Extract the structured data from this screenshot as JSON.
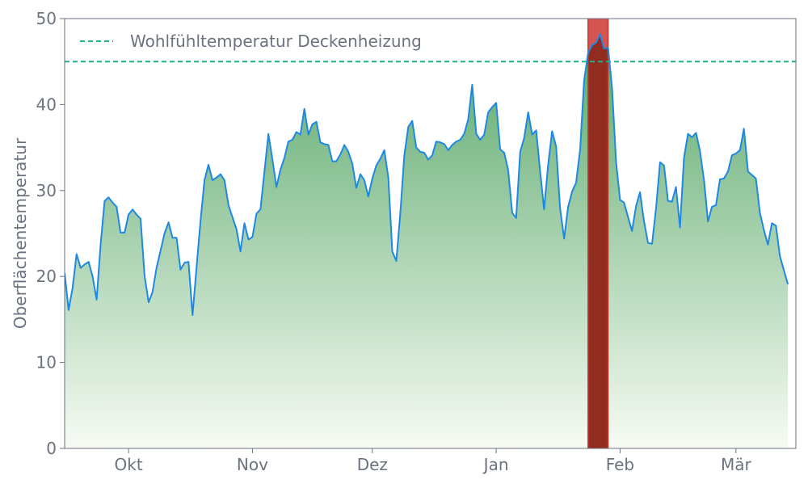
{
  "chart_data": {
    "type": "area",
    "title": "",
    "xlabel": "",
    "ylabel": "Oberflächentemperatur",
    "ylim": [
      0,
      50
    ],
    "y_ticks": [
      0,
      10,
      20,
      30,
      40,
      50
    ],
    "x_range": [
      "2023-09-15",
      "2024-03-16"
    ],
    "x_ticks": [
      {
        "date": "2023-10-01",
        "label": "Okt"
      },
      {
        "date": "2023-11-01",
        "label": "Nov"
      },
      {
        "date": "2023-12-01",
        "label": "Dez"
      },
      {
        "date": "2024-01-01",
        "label": "Jan"
      },
      {
        "date": "2024-02-01",
        "label": "Feb"
      },
      {
        "date": "2024-03-01",
        "label": "Mär"
      }
    ],
    "grid": false,
    "legend": {
      "placement": "top-left"
    },
    "series": [
      {
        "color": "#1e88e5",
        "fill_gradient": [
          "#5aa86a",
          "#f7fbf4"
        ],
        "points": [
          [
            "2023-09-15",
            20.4
          ],
          [
            "2023-09-16",
            16.1
          ],
          [
            "2023-09-17",
            18.7
          ],
          [
            "2023-09-18",
            22.6
          ],
          [
            "2023-09-19",
            21.0
          ],
          [
            "2023-09-20",
            21.4
          ],
          [
            "2023-09-21",
            21.7
          ],
          [
            "2023-09-22",
            20.0
          ],
          [
            "2023-09-23",
            17.3
          ],
          [
            "2023-09-24",
            23.7
          ],
          [
            "2023-09-25",
            28.8
          ],
          [
            "2023-09-26",
            29.2
          ],
          [
            "2023-09-27",
            28.6
          ],
          [
            "2023-09-28",
            28.1
          ],
          [
            "2023-09-29",
            25.1
          ],
          [
            "2023-09-30",
            25.1
          ],
          [
            "2023-10-01",
            27.2
          ],
          [
            "2023-10-02",
            27.8
          ],
          [
            "2023-10-03",
            27.2
          ],
          [
            "2023-10-04",
            26.7
          ],
          [
            "2023-10-05",
            20.1
          ],
          [
            "2023-10-06",
            17.0
          ],
          [
            "2023-10-07",
            18.2
          ],
          [
            "2023-10-08",
            21.0
          ],
          [
            "2023-10-09",
            23.0
          ],
          [
            "2023-10-10",
            25.0
          ],
          [
            "2023-10-11",
            26.3
          ],
          [
            "2023-10-12",
            24.5
          ],
          [
            "2023-10-13",
            24.5
          ],
          [
            "2023-10-14",
            20.8
          ],
          [
            "2023-10-15",
            21.6
          ],
          [
            "2023-10-16",
            21.7
          ],
          [
            "2023-10-17",
            15.5
          ],
          [
            "2023-10-18",
            21.0
          ],
          [
            "2023-10-19",
            26.4
          ],
          [
            "2023-10-20",
            31.2
          ],
          [
            "2023-10-21",
            33.0
          ],
          [
            "2023-10-22",
            31.2
          ],
          [
            "2023-10-23",
            31.5
          ],
          [
            "2023-10-24",
            31.9
          ],
          [
            "2023-10-25",
            31.2
          ],
          [
            "2023-10-26",
            28.3
          ],
          [
            "2023-10-27",
            26.9
          ],
          [
            "2023-10-28",
            25.5
          ],
          [
            "2023-10-29",
            22.9
          ],
          [
            "2023-10-30",
            26.2
          ],
          [
            "2023-10-31",
            24.3
          ],
          [
            "2023-11-01",
            24.6
          ],
          [
            "2023-11-02",
            27.3
          ],
          [
            "2023-11-03",
            27.8
          ],
          [
            "2023-11-04",
            32.2
          ],
          [
            "2023-11-05",
            36.6
          ],
          [
            "2023-11-06",
            33.6
          ],
          [
            "2023-11-07",
            30.4
          ],
          [
            "2023-11-08",
            32.4
          ],
          [
            "2023-11-09",
            33.8
          ],
          [
            "2023-11-10",
            35.7
          ],
          [
            "2023-11-11",
            35.9
          ],
          [
            "2023-11-12",
            36.8
          ],
          [
            "2023-11-13",
            36.5
          ],
          [
            "2023-11-14",
            39.5
          ],
          [
            "2023-11-15",
            36.5
          ],
          [
            "2023-11-16",
            37.7
          ],
          [
            "2023-11-17",
            38.0
          ],
          [
            "2023-11-18",
            35.6
          ],
          [
            "2023-11-19",
            35.4
          ],
          [
            "2023-11-20",
            35.3
          ],
          [
            "2023-11-21",
            33.4
          ],
          [
            "2023-11-22",
            33.4
          ],
          [
            "2023-11-23",
            34.2
          ],
          [
            "2023-11-24",
            35.3
          ],
          [
            "2023-11-25",
            34.5
          ],
          [
            "2023-11-26",
            33.1
          ],
          [
            "2023-11-27",
            30.3
          ],
          [
            "2023-11-28",
            31.9
          ],
          [
            "2023-11-29",
            31.2
          ],
          [
            "2023-11-30",
            29.3
          ],
          [
            "2023-12-01",
            31.4
          ],
          [
            "2023-12-02",
            32.9
          ],
          [
            "2023-12-03",
            33.7
          ],
          [
            "2023-12-04",
            34.7
          ],
          [
            "2023-12-05",
            31.5
          ],
          [
            "2023-12-06",
            22.9
          ],
          [
            "2023-12-07",
            21.8
          ],
          [
            "2023-12-08",
            27.3
          ],
          [
            "2023-12-09",
            34.1
          ],
          [
            "2023-12-10",
            37.4
          ],
          [
            "2023-12-11",
            38.1
          ],
          [
            "2023-12-12",
            35.0
          ],
          [
            "2023-12-13",
            34.5
          ],
          [
            "2023-12-14",
            34.4
          ],
          [
            "2023-12-15",
            33.6
          ],
          [
            "2023-12-16",
            34.1
          ],
          [
            "2023-12-17",
            35.7
          ],
          [
            "2023-12-18",
            35.6
          ],
          [
            "2023-12-19",
            35.4
          ],
          [
            "2023-12-20",
            34.7
          ],
          [
            "2023-12-21",
            35.3
          ],
          [
            "2023-12-22",
            35.7
          ],
          [
            "2023-12-23",
            35.9
          ],
          [
            "2023-12-24",
            36.6
          ],
          [
            "2023-12-25",
            38.3
          ],
          [
            "2023-12-26",
            42.3
          ],
          [
            "2023-12-27",
            36.6
          ],
          [
            "2023-12-28",
            35.9
          ],
          [
            "2023-12-29",
            36.5
          ],
          [
            "2023-12-30",
            39.1
          ],
          [
            "2023-12-31",
            39.7
          ],
          [
            "2024-01-01",
            40.2
          ],
          [
            "2024-01-02",
            34.8
          ],
          [
            "2024-01-03",
            34.4
          ],
          [
            "2024-01-04",
            32.4
          ],
          [
            "2024-01-05",
            27.4
          ],
          [
            "2024-01-06",
            26.8
          ],
          [
            "2024-01-07",
            34.5
          ],
          [
            "2024-01-08",
            36.1
          ],
          [
            "2024-01-09",
            39.1
          ],
          [
            "2024-01-10",
            36.5
          ],
          [
            "2024-01-11",
            37.0
          ],
          [
            "2024-01-12",
            32.2
          ],
          [
            "2024-01-13",
            27.8
          ],
          [
            "2024-01-14",
            33.0
          ],
          [
            "2024-01-15",
            36.9
          ],
          [
            "2024-01-16",
            35.1
          ],
          [
            "2024-01-17",
            27.9
          ],
          [
            "2024-01-18",
            24.4
          ],
          [
            "2024-01-19",
            28.1
          ],
          [
            "2024-01-20",
            29.9
          ],
          [
            "2024-01-21",
            30.9
          ],
          [
            "2024-01-22",
            34.8
          ],
          [
            "2024-01-23",
            42.8
          ],
          [
            "2024-01-24",
            46.0
          ],
          [
            "2024-01-25",
            46.9
          ],
          [
            "2024-01-26",
            47.2
          ],
          [
            "2024-01-27",
            48.2
          ],
          [
            "2024-01-28",
            46.5
          ],
          [
            "2024-01-29",
            46.6
          ],
          [
            "2024-01-30",
            41.9
          ],
          [
            "2024-01-31",
            33.3
          ],
          [
            "2024-02-01",
            28.9
          ],
          [
            "2024-02-02",
            28.6
          ],
          [
            "2024-02-03",
            26.9
          ],
          [
            "2024-02-04",
            25.3
          ],
          [
            "2024-02-05",
            28.2
          ],
          [
            "2024-02-06",
            29.8
          ],
          [
            "2024-02-07",
            26.4
          ],
          [
            "2024-02-08",
            23.9
          ],
          [
            "2024-02-09",
            23.8
          ],
          [
            "2024-02-10",
            27.9
          ],
          [
            "2024-02-11",
            33.3
          ],
          [
            "2024-02-12",
            32.9
          ],
          [
            "2024-02-13",
            28.8
          ],
          [
            "2024-02-14",
            28.7
          ],
          [
            "2024-02-15",
            30.4
          ],
          [
            "2024-02-16",
            25.7
          ],
          [
            "2024-02-17",
            33.8
          ],
          [
            "2024-02-18",
            36.6
          ],
          [
            "2024-02-19",
            36.2
          ],
          [
            "2024-02-20",
            36.7
          ],
          [
            "2024-02-21",
            34.6
          ],
          [
            "2024-02-22",
            31.2
          ],
          [
            "2024-02-23",
            26.4
          ],
          [
            "2024-02-24",
            28.1
          ],
          [
            "2024-02-25",
            28.3
          ],
          [
            "2024-02-26",
            31.3
          ],
          [
            "2024-02-27",
            31.4
          ],
          [
            "2024-02-28",
            32.2
          ],
          [
            "2024-02-29",
            34.1
          ],
          [
            "2024-03-01",
            34.3
          ],
          [
            "2024-03-02",
            34.7
          ],
          [
            "2024-03-03",
            37.2
          ],
          [
            "2024-03-04",
            32.2
          ],
          [
            "2024-03-05",
            31.8
          ],
          [
            "2024-03-06",
            31.4
          ],
          [
            "2024-03-07",
            27.4
          ],
          [
            "2024-03-08",
            25.4
          ],
          [
            "2024-03-09",
            23.7
          ],
          [
            "2024-03-10",
            26.2
          ],
          [
            "2024-03-11",
            25.9
          ],
          [
            "2024-03-12",
            22.4
          ],
          [
            "2024-03-13",
            20.7
          ],
          [
            "2024-03-14",
            19.1
          ]
        ]
      }
    ],
    "reference_line": {
      "label": "Wohlfühltemperatur Deckenheizung",
      "value": 45,
      "color": "#1db38a",
      "style": "dashed"
    },
    "highlight": {
      "from": "2024-01-24",
      "to": "2024-01-29",
      "fill": "#d45552",
      "overlap_fill": "#912d20",
      "edge_color": "#c0392b"
    }
  }
}
